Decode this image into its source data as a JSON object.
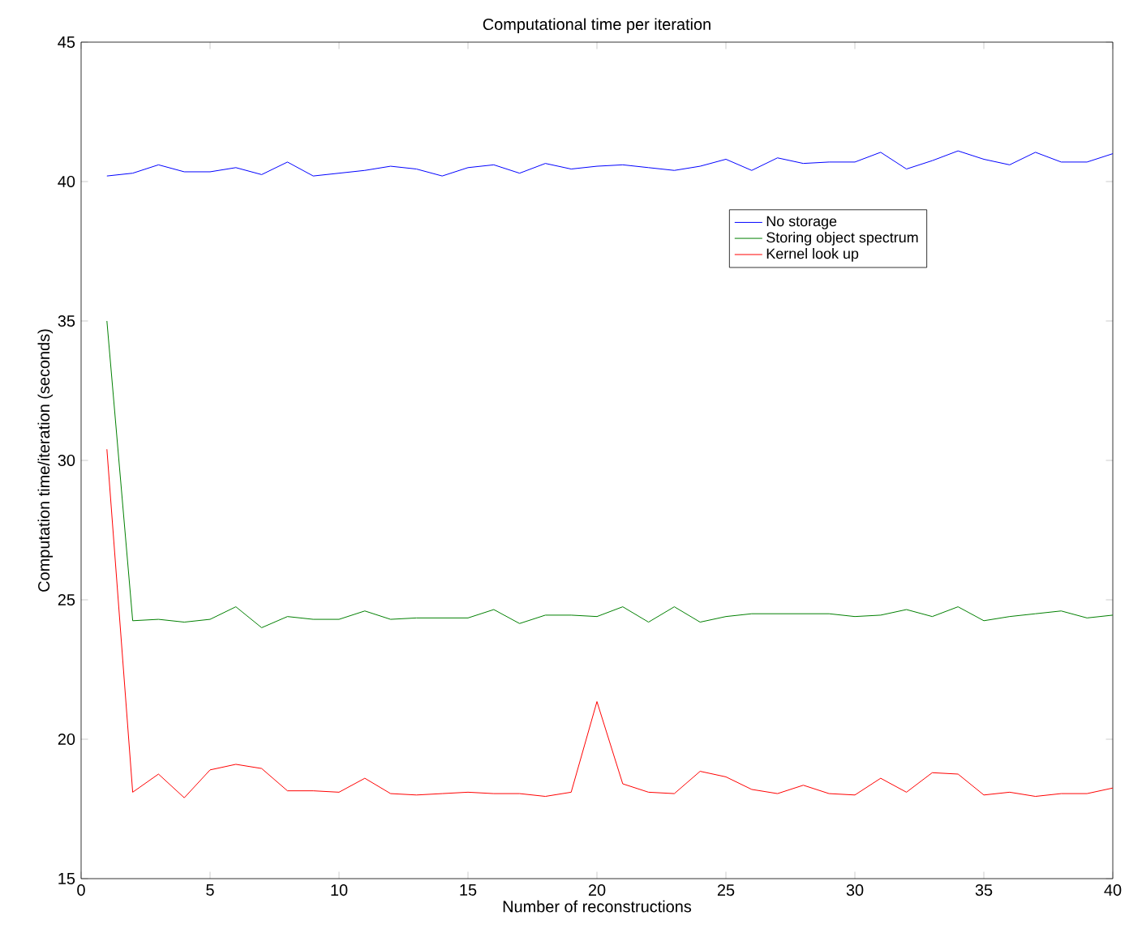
{
  "chart_data": {
    "type": "line",
    "title": "Computational time per iteration",
    "xlabel": "Number of reconstructions",
    "ylabel": "Computation time/iteration (seconds)",
    "x": [
      1,
      2,
      3,
      4,
      5,
      6,
      7,
      8,
      9,
      10,
      11,
      12,
      13,
      14,
      15,
      16,
      17,
      18,
      19,
      20,
      21,
      22,
      23,
      24,
      25,
      26,
      27,
      28,
      29,
      30,
      31,
      32,
      33,
      34,
      35,
      36,
      37,
      38,
      39,
      40
    ],
    "xlim": [
      0,
      40
    ],
    "ylim": [
      15,
      45
    ],
    "xticks": [
      0,
      5,
      10,
      15,
      20,
      25,
      30,
      35,
      40
    ],
    "yticks": [
      15,
      20,
      25,
      30,
      35,
      40,
      45
    ],
    "legend": "top right",
    "grid": false,
    "series": [
      {
        "name": "No storage",
        "color": "#0000ff",
        "values": [
          40.2,
          40.3,
          40.6,
          40.35,
          40.35,
          40.5,
          40.25,
          40.7,
          40.2,
          40.3,
          40.4,
          40.55,
          40.45,
          40.2,
          40.5,
          40.6,
          40.3,
          40.65,
          40.45,
          40.55,
          40.6,
          40.5,
          40.4,
          40.55,
          40.8,
          40.4,
          40.85,
          40.65,
          40.7,
          40.7,
          41.05,
          40.45,
          40.75,
          41.1,
          40.8,
          40.6,
          41.05,
          40.7,
          40.7,
          41.0
        ]
      },
      {
        "name": "Storing object spectrum",
        "color": "#008000",
        "values": [
          35,
          24.25,
          24.3,
          24.2,
          24.3,
          24.75,
          24.0,
          24.4,
          24.3,
          24.3,
          24.6,
          24.3,
          24.35,
          24.35,
          24.35,
          24.65,
          24.15,
          24.45,
          24.45,
          24.4,
          24.75,
          24.2,
          24.75,
          24.2,
          24.4,
          24.5,
          24.5,
          24.5,
          24.5,
          24.4,
          24.45,
          24.65,
          24.4,
          24.75,
          24.25,
          24.4,
          24.5,
          24.6,
          24.35,
          24.45
        ]
      },
      {
        "name": "Kernel look up",
        "color": "#ff0000",
        "values": [
          30.4,
          18.1,
          18.75,
          17.9,
          18.9,
          19.1,
          18.95,
          18.15,
          18.15,
          18.1,
          18.6,
          18.05,
          18.0,
          18.05,
          18.1,
          18.05,
          18.05,
          17.95,
          18.1,
          21.35,
          18.4,
          18.1,
          18.05,
          18.85,
          18.65,
          18.2,
          18.05,
          18.35,
          18.05,
          18.0,
          18.6,
          18.1,
          18.8,
          18.75,
          18.0,
          18.1,
          17.95,
          18.05,
          18.05,
          18.25
        ]
      }
    ]
  }
}
